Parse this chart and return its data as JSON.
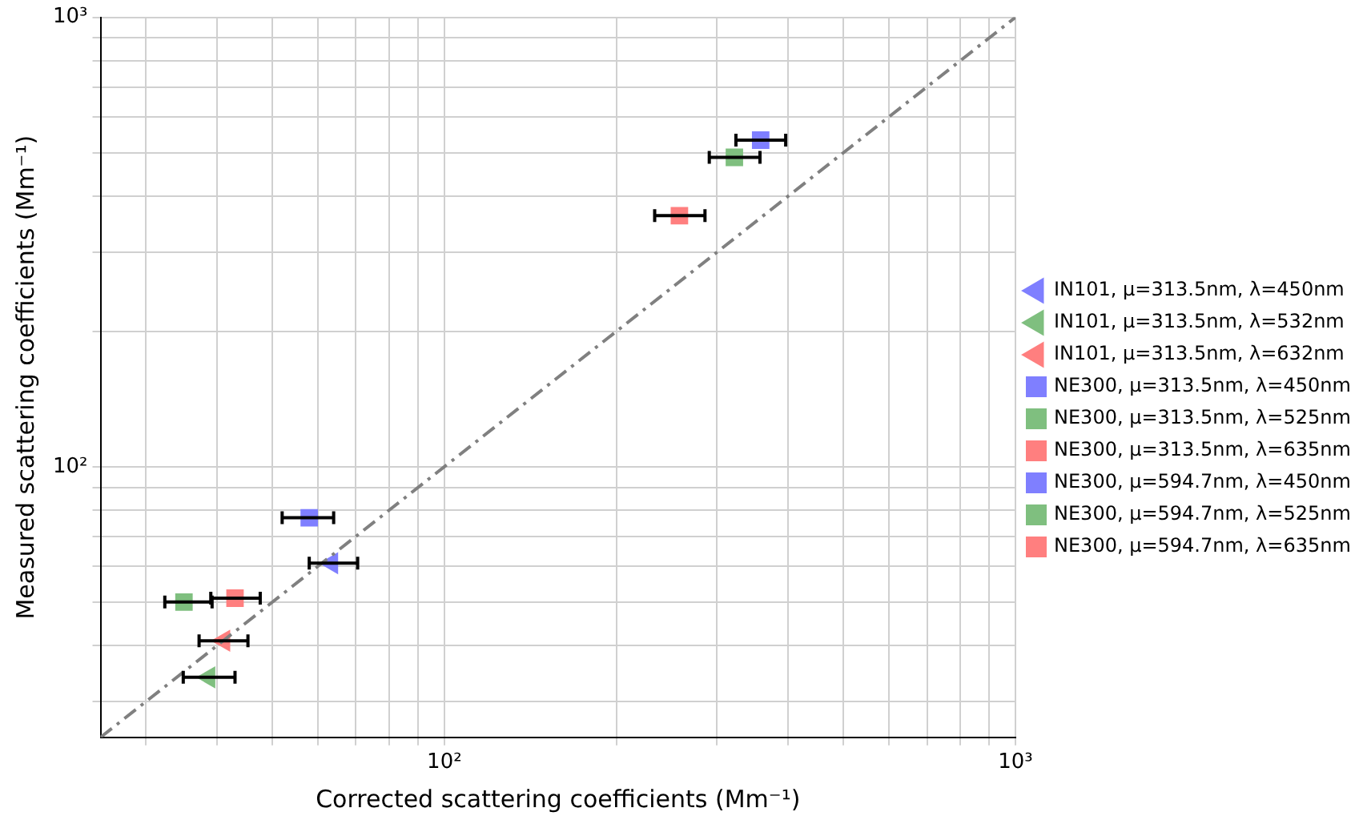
{
  "chart_data": {
    "type": "scatter",
    "xlabel": "Corrected scattering coefficients (Mm⁻¹)",
    "ylabel": "Measured scattering coefficients (Mm⁻¹)",
    "log": "xy",
    "grid": true,
    "legend": "right",
    "xlim": [
      25,
      1000
    ],
    "ylim": [
      25,
      1000
    ],
    "xticks": [
      {
        "value": 30,
        "label": null
      },
      {
        "value": 40,
        "label": null
      },
      {
        "value": 50,
        "label": null
      },
      {
        "value": 60,
        "label": null
      },
      {
        "value": 70,
        "label": null
      },
      {
        "value": 80,
        "label": null
      },
      {
        "value": 90,
        "label": null
      },
      {
        "value": 100,
        "label": "10²"
      },
      {
        "value": 200,
        "label": null
      },
      {
        "value": 300,
        "label": null
      },
      {
        "value": 400,
        "label": null
      },
      {
        "value": 500,
        "label": null
      },
      {
        "value": 600,
        "label": null
      },
      {
        "value": 700,
        "label": null
      },
      {
        "value": 800,
        "label": null
      },
      {
        "value": 900,
        "label": null
      },
      {
        "value": 1000,
        "label": "10³"
      }
    ],
    "yticks": [
      {
        "value": 30,
        "label": null
      },
      {
        "value": 40,
        "label": null
      },
      {
        "value": 50,
        "label": null
      },
      {
        "value": 60,
        "label": null
      },
      {
        "value": 70,
        "label": null
      },
      {
        "value": 80,
        "label": null
      },
      {
        "value": 90,
        "label": null
      },
      {
        "value": 100,
        "label": "10²"
      },
      {
        "value": 200,
        "label": null
      },
      {
        "value": 300,
        "label": null
      },
      {
        "value": 400,
        "label": null
      },
      {
        "value": 500,
        "label": null
      },
      {
        "value": 600,
        "label": null
      },
      {
        "value": 700,
        "label": null
      },
      {
        "value": 800,
        "label": null
      },
      {
        "value": 900,
        "label": null
      },
      {
        "value": 1000,
        "label": "10³"
      }
    ],
    "series": [
      {
        "type": "line",
        "color": "#808080",
        "line_style": "dashed",
        "marker": "none",
        "x": [
          25,
          1000
        ],
        "values": [
          25,
          1000
        ]
      },
      {
        "name": "IN101, μ=313.5nm, λ=450nm",
        "color": "#7f7fff",
        "marker": "triangle",
        "x": [
          63.5
        ],
        "values": [
          61
        ],
        "xerrors": [
          [
            58,
            70.5
          ]
        ]
      },
      {
        "name": "IN101, μ=313.5nm, λ=532nm",
        "color": "#7fbf7f",
        "marker": "triangle",
        "x": [
          38.7
        ],
        "values": [
          34
        ],
        "xerrors": [
          [
            34.9,
            43
          ]
        ]
      },
      {
        "name": "IN101, μ=313.5nm, λ=632nm",
        "color": "#ff7f7f",
        "marker": "triangle",
        "x": [
          41.1
        ],
        "values": [
          41
        ],
        "xerrors": [
          [
            37.2,
            45.3
          ]
        ]
      },
      {
        "name": "NE300, μ=313.5nm, λ=450nm",
        "color": "#7f7fff",
        "marker": "square",
        "x": [
          58
        ],
        "values": [
          77
        ],
        "xerrors": [
          [
            52,
            64
          ]
        ]
      },
      {
        "name": "NE300, μ=313.5nm, λ=525nm",
        "color": "#7fbf7f",
        "marker": "square",
        "x": [
          35
        ],
        "values": [
          50
        ],
        "xerrors": [
          [
            32.4,
            39.2
          ]
        ]
      },
      {
        "name": "NE300, μ=313.5nm, λ=635nm",
        "color": "#ff7f7f",
        "marker": "square",
        "x": [
          43
        ],
        "values": [
          51
        ],
        "xerrors": [
          [
            39,
            47.6
          ]
        ]
      },
      {
        "name": "NE300, μ=594.7nm, λ=450nm",
        "color": "#7f7fff",
        "marker": "square",
        "x": [
          358
        ],
        "values": [
          533
        ],
        "xerrors": [
          [
            324,
            396
          ]
        ]
      },
      {
        "name": "NE300, μ=594.7nm, λ=525nm",
        "color": "#7fbf7f",
        "marker": "square",
        "x": [
          322
        ],
        "values": [
          488
        ],
        "xerrors": [
          [
            291,
            357
          ]
        ]
      },
      {
        "name": "NE300, μ=594.7nm, λ=635nm",
        "color": "#ff7f7f",
        "marker": "square",
        "x": [
          258
        ],
        "values": [
          362
        ],
        "xerrors": [
          [
            233.5,
            286
          ]
        ]
      }
    ]
  }
}
